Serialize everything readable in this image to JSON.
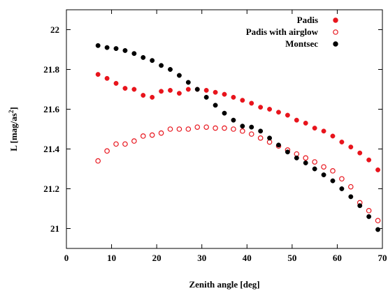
{
  "chart_data": {
    "type": "scatter",
    "xlabel": "Zenith angle [deg]",
    "ylabel_main": "L [mag/as",
    "ylabel_sup": "2",
    "ylabel_close": "]",
    "xlim": [
      0,
      70
    ],
    "ylim": [
      20.9,
      22.1
    ],
    "xticks": [
      0,
      10,
      20,
      30,
      40,
      50,
      60,
      70
    ],
    "xtick_labels": [
      "0",
      "10",
      "20",
      "30",
      "40",
      "50",
      "60",
      "70"
    ],
    "yticks": [
      21,
      21.2,
      21.4,
      21.6,
      21.8,
      22
    ],
    "ytick_labels": [
      "21",
      "21.2",
      "21.4",
      "21.6",
      "21.8",
      "22"
    ],
    "grid": false,
    "legend_position": "top-right",
    "series": [
      {
        "name": "Padis",
        "color": "#e8141c",
        "marker": "filled-circle",
        "x": [
          7,
          9,
          11,
          13,
          15,
          17,
          19,
          21,
          23,
          25,
          27,
          29,
          31,
          33,
          35,
          37,
          39,
          41,
          43,
          45,
          47,
          49,
          51,
          53,
          55,
          57,
          59,
          61,
          63,
          65,
          67,
          69
        ],
        "y": [
          21.775,
          21.755,
          21.73,
          21.705,
          21.7,
          21.67,
          21.66,
          21.69,
          21.695,
          21.68,
          21.7,
          21.7,
          21.695,
          21.685,
          21.675,
          21.66,
          21.645,
          21.63,
          21.61,
          21.6,
          21.585,
          21.57,
          21.545,
          21.53,
          21.505,
          21.49,
          21.465,
          21.435,
          21.41,
          21.38,
          21.345,
          21.295
        ]
      },
      {
        "name": "Padis with airglow",
        "color": "#e8141c",
        "marker": "open-circle",
        "x": [
          7,
          9,
          11,
          13,
          15,
          17,
          19,
          21,
          23,
          25,
          27,
          29,
          31,
          33,
          35,
          37,
          39,
          41,
          43,
          45,
          47,
          49,
          51,
          53,
          55,
          57,
          59,
          61,
          63,
          65,
          67,
          69
        ],
        "y": [
          21.34,
          21.39,
          21.425,
          21.425,
          21.44,
          21.465,
          21.47,
          21.48,
          21.5,
          21.5,
          21.5,
          21.51,
          21.51,
          21.505,
          21.505,
          21.5,
          21.49,
          21.475,
          21.455,
          21.435,
          21.415,
          21.395,
          21.375,
          21.355,
          21.335,
          21.31,
          21.29,
          21.25,
          21.21,
          21.13,
          21.09,
          21.04
        ]
      },
      {
        "name": "Montsec",
        "color": "#000000",
        "marker": "filled-circle",
        "x": [
          7,
          9,
          11,
          13,
          15,
          17,
          19,
          21,
          23,
          25,
          27,
          29,
          31,
          33,
          35,
          37,
          39,
          41,
          43,
          45,
          47,
          49,
          51,
          53,
          55,
          57,
          59,
          61,
          63,
          65,
          67,
          69
        ],
        "y": [
          21.92,
          21.91,
          21.905,
          21.895,
          21.88,
          21.86,
          21.845,
          21.82,
          21.8,
          21.77,
          21.735,
          21.7,
          21.66,
          21.62,
          21.58,
          21.545,
          21.515,
          21.51,
          21.49,
          21.455,
          21.42,
          21.385,
          21.355,
          21.33,
          21.3,
          21.27,
          21.24,
          21.2,
          21.16,
          21.115,
          21.06,
          20.995
        ]
      }
    ]
  }
}
